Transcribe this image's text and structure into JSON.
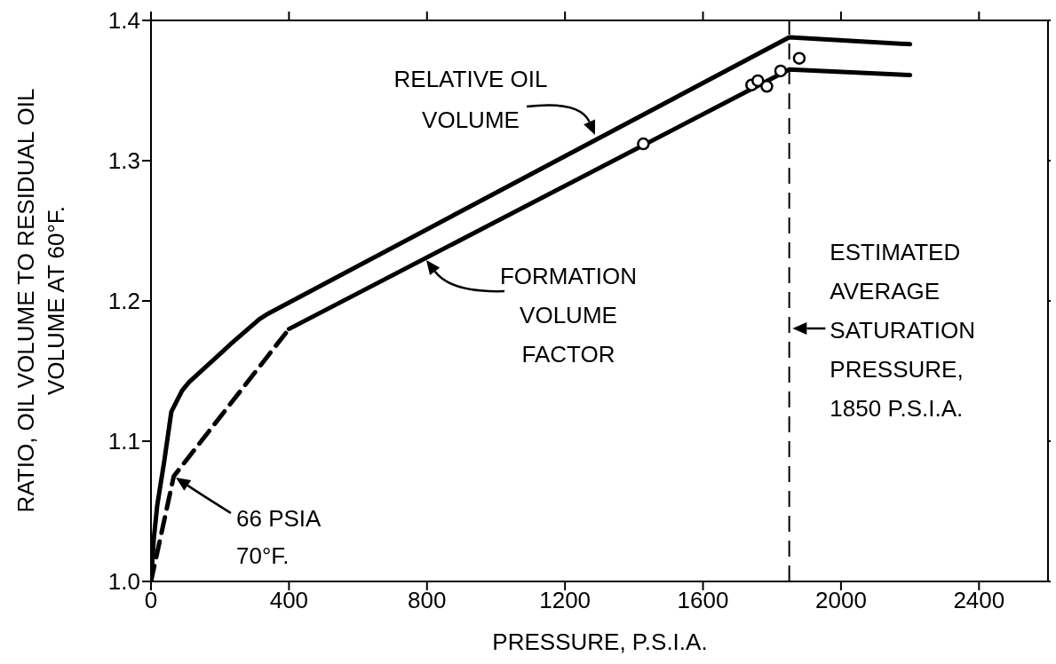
{
  "chart_data": {
    "type": "line",
    "xlabel": "PRESSURE, P.S.I.A.",
    "ylabel": "RATIO, OIL VOLUME TO RESIDUAL OIL\nVOLUME AT 60°F.",
    "xlim": [
      0,
      2600
    ],
    "xticks": [
      0,
      400,
      800,
      1200,
      1600,
      2000,
      2400
    ],
    "ylim": [
      1.0,
      1.4
    ],
    "yticks": [
      {
        "value": 1,
        "label": "1.0"
      },
      {
        "value": 1.1,
        "label": "1.1"
      },
      {
        "value": 1.2,
        "label": "1.2"
      },
      {
        "value": 1.3,
        "label": "1.3"
      },
      {
        "value": 1.4,
        "label": "1.4"
      }
    ],
    "marker": "none",
    "line_style": "solid",
    "series": [
      {
        "color": "#000000",
        "x": [
          0,
          8,
          18,
          38,
          59,
          90,
          110,
          230,
          314,
          340,
          1850,
          2200
        ],
        "values": [
          1.0,
          1.03,
          1.054,
          1.085,
          1.121,
          1.136,
          1.142,
          1.169,
          1.187,
          1.191,
          1.388,
          1.383
        ]
      },
      {
        "color": "#000000",
        "line_style": "dashed",
        "x": [
          0,
          66,
          400
        ],
        "values": [
          1.0,
          1.075,
          1.18
        ]
      },
      {
        "color": "#000000",
        "x": [
          400,
          1850,
          2200
        ],
        "values": [
          1.18,
          1.365,
          1.361
        ]
      },
      {
        "type": "scatter",
        "marker": "circle",
        "color": "#000000",
        "x": [
          1427,
          1741,
          1759,
          1785,
          1825,
          1879
        ],
        "values": [
          1.312,
          1.354,
          1.357,
          1.353,
          1.364,
          1.373
        ]
      }
    ],
    "ref_lines": [
      {
        "axis": "x",
        "value": 1850,
        "label": "ESTIMATED\nAVERAGE\nSATURATION\nPRESSURE,\n1850 P.S.I.A.",
        "line_style": "dashed",
        "color": "#000000"
      }
    ],
    "annotations": [
      "RELATIVE OIL\nVOLUME",
      "FORMATION\nVOLUME\nFACTOR",
      "66 PSIA\n70°F."
    ]
  }
}
